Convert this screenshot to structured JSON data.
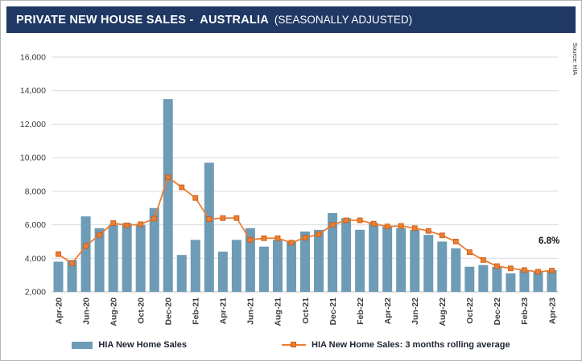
{
  "title": {
    "main": "PRIVATE NEW HOUSE SALES -  AUSTRALIA",
    "sub": "(SEASONALLY ADJUSTED)"
  },
  "source": "Source: HIA",
  "annotation": "6.8%",
  "colors": {
    "title_bar": "#1F3864",
    "bar": "#6E9BB5",
    "line": "#ED7D31",
    "line_marker_edge": "#C55A11",
    "grid": "#d9d9d9",
    "axis_baseline": "#bfbfbf"
  },
  "legend": {
    "items": [
      {
        "label": "HIA New Home Sales"
      },
      {
        "label": "HIA New Home Sales: 3 months rolling average"
      }
    ]
  },
  "chart_data": {
    "type": "bar",
    "title": "PRIVATE NEW HOUSE SALES - AUSTRALIA (SEASONALLY ADJUSTED)",
    "xlabel": "",
    "ylabel": "",
    "ylim": [
      2000,
      16000
    ],
    "ytick_step": 2000,
    "grid": true,
    "legend_position": "bottom",
    "x_tick_every": 2,
    "categories": [
      "Apr-20",
      "May-20",
      "Jun-20",
      "Jul-20",
      "Aug-20",
      "Sep-20",
      "Oct-20",
      "Nov-20",
      "Dec-20",
      "Jan-21",
      "Feb-21",
      "Mar-21",
      "Apr-21",
      "May-21",
      "Jun-21",
      "Jul-21",
      "Aug-21",
      "Sep-21",
      "Oct-21",
      "Nov-21",
      "Dec-21",
      "Jan-22",
      "Feb-22",
      "Mar-22",
      "Apr-22",
      "May-22",
      "Jun-22",
      "Jul-22",
      "Aug-22",
      "Sep-22",
      "Oct-22",
      "Nov-22",
      "Dec-22",
      "Jan-23",
      "Feb-23",
      "Mar-23",
      "Apr-23"
    ],
    "series": [
      {
        "name": "HIA New Home Sales",
        "type": "bar",
        "color": "#6E9BB5",
        "values": [
          3800,
          3900,
          6500,
          5800,
          6000,
          6100,
          6000,
          7000,
          13500,
          4200,
          5100,
          9700,
          4400,
          5100,
          5800,
          4700,
          5100,
          5000,
          5600,
          5700,
          6700,
          6400,
          5700,
          6100,
          5900,
          5800,
          5700,
          5400,
          5000,
          4600,
          3500,
          3600,
          3500,
          3100,
          3300,
          3200,
          3300
        ]
      },
      {
        "name": "HIA New Home Sales: 3 months rolling average",
        "type": "line",
        "color": "#ED7D31",
        "marker": "square",
        "values": [
          4250,
          3700,
          4733,
          5400,
          6100,
          5967,
          6033,
          6367,
          8833,
          8233,
          7600,
          6333,
          6400,
          6400,
          5100,
          5200,
          5200,
          4933,
          5233,
          5433,
          6000,
          6267,
          6267,
          6067,
          5900,
          5933,
          5800,
          5633,
          5367,
          5000,
          4367,
          3900,
          3533,
          3400,
          3300,
          3200,
          3267
        ]
      }
    ],
    "annotations": [
      {
        "text": "6.8%",
        "x": "Apr-23",
        "y": 4800
      }
    ]
  }
}
